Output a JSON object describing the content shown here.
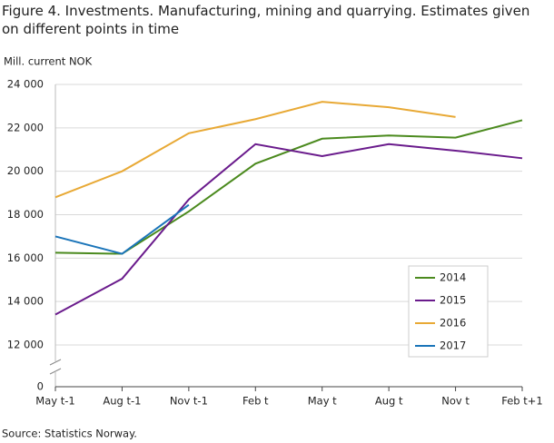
{
  "chart_data": {
    "type": "line",
    "title": "Figure 4. Investments. Manufacturing, mining and quarrying. Estimates given on different points in time",
    "y_axis_label": "Mill. current NOK",
    "source": "Source: Statistics Norway.",
    "categories": [
      "May t-1",
      "Aug t-1",
      "Nov t-1",
      "Feb t",
      "May t",
      "Aug t",
      "Nov t",
      "Feb t+1"
    ],
    "series": [
      {
        "name": "2014",
        "color": "#4b8a1e",
        "values": [
          16250,
          16200,
          18150,
          20350,
          21500,
          21650,
          21550,
          22350
        ]
      },
      {
        "name": "2015",
        "color": "#6a1b8c",
        "values": [
          13400,
          15050,
          18700,
          21250,
          20700,
          21250,
          20950,
          20600
        ]
      },
      {
        "name": "2016",
        "color": "#e8a935",
        "values": [
          18800,
          20000,
          21750,
          22400,
          23200,
          22950,
          22500,
          null
        ]
      },
      {
        "name": "2017",
        "color": "#1a74b9",
        "values": [
          17000,
          16200,
          18450,
          null,
          null,
          null,
          null,
          null
        ]
      }
    ],
    "ylim": [
      0,
      24000
    ],
    "y_break": [
      0,
      12000
    ],
    "yticks": [
      {
        "value": 0,
        "label": "0"
      },
      {
        "value": 12000,
        "label": "12 000"
      },
      {
        "value": 14000,
        "label": "14 000"
      },
      {
        "value": 16000,
        "label": "16 000"
      },
      {
        "value": 18000,
        "label": "18 000"
      },
      {
        "value": 20000,
        "label": "20 000"
      },
      {
        "value": 22000,
        "label": "22 000"
      },
      {
        "value": 24000,
        "label": "24 000"
      }
    ],
    "grid": true
  }
}
